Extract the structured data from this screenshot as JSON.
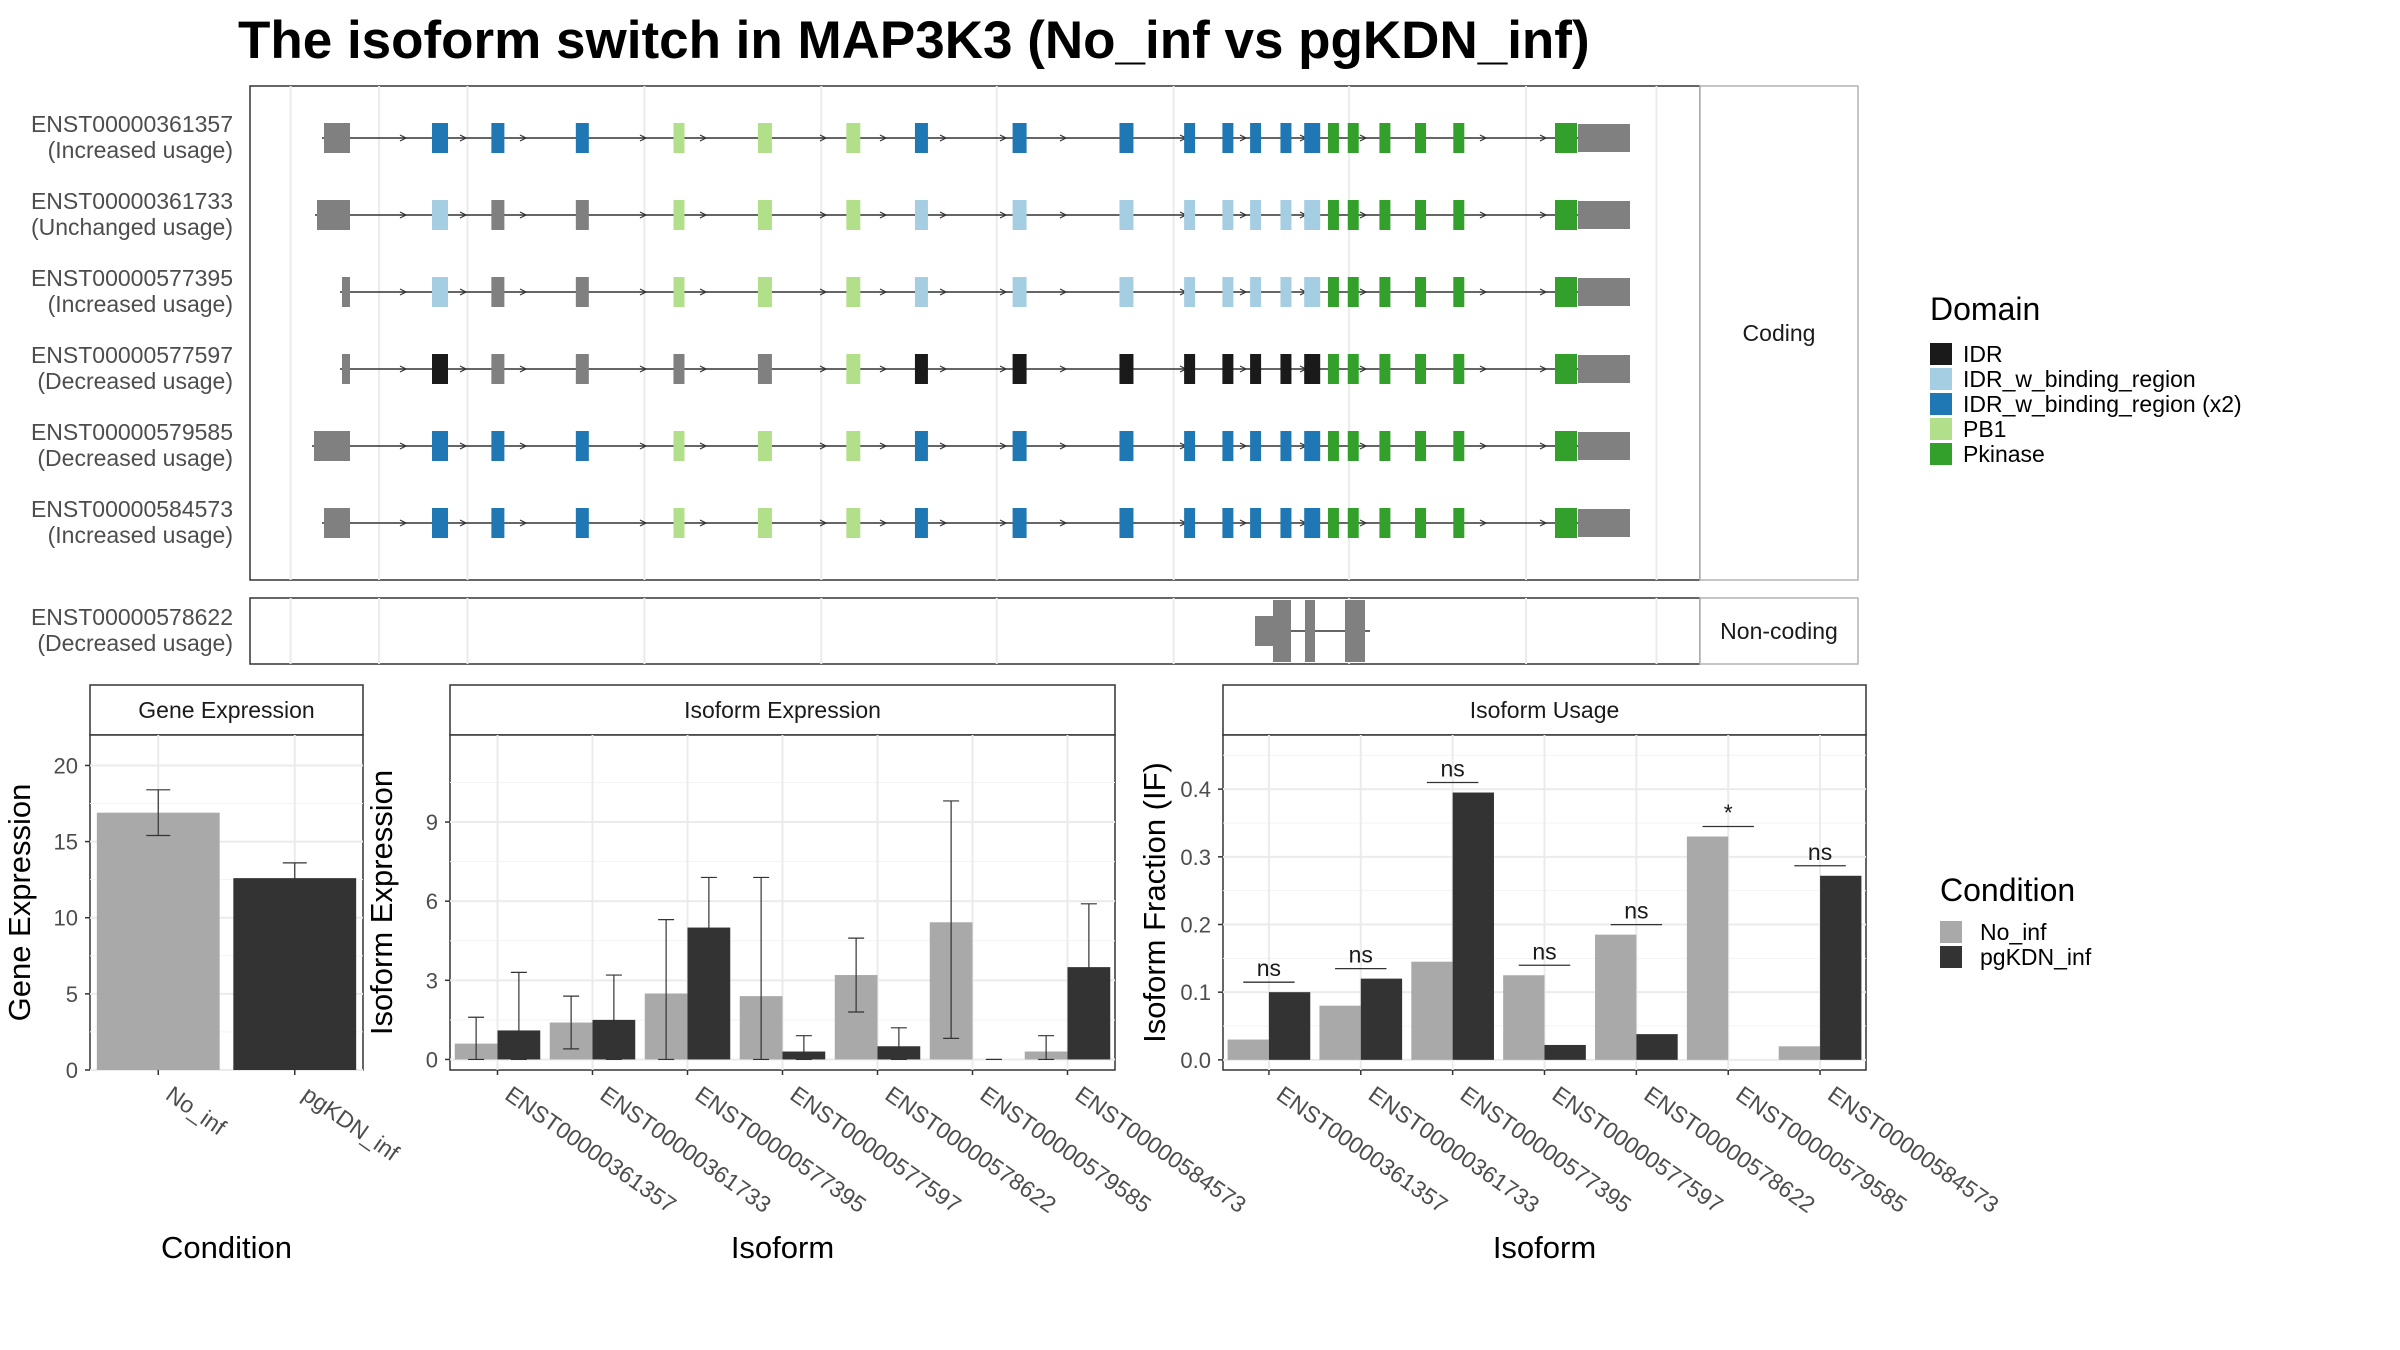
{
  "title": "The isoform switch in MAP3K3 (No_inf vs pgKDN_inf)",
  "colors": {
    "IDR": "#1a1a1a",
    "IDR_w_binding_region": "#a6cee3",
    "IDR_w_binding_region (x2)": "#1f78b4",
    "PB1": "#b2df8a",
    "Pkinase": "#33a02c",
    "none": "#808080",
    "No_inf": "#a9a9a9",
    "pgKDN_inf": "#333333"
  },
  "chart_data": [
    {
      "type": "gene-structure",
      "panels": [
        {
          "label": "Coding",
          "isoforms": [
            {
              "id": "ENST00000361357",
              "usage": "(Increased usage)"
            },
            {
              "id": "ENST00000361733",
              "usage": "(Unchanged usage)"
            },
            {
              "id": "ENST00000577395",
              "usage": "(Increased usage)"
            },
            {
              "id": "ENST00000577597",
              "usage": "(Decreased usage)"
            },
            {
              "id": "ENST00000579585",
              "usage": "(Decreased usage)"
            },
            {
              "id": "ENST00000584573",
              "usage": "(Increased usage)"
            }
          ]
        },
        {
          "label": "Non-coding",
          "isoforms": [
            {
              "id": "ENST00000578622",
              "usage": "(Decreased usage)"
            }
          ]
        }
      ],
      "legend": {
        "title": "Domain",
        "entries": [
          "IDR",
          "IDR_w_binding_region",
          "IDR_w_binding_region (x2)",
          "PB1",
          "Pkinase"
        ]
      }
    },
    {
      "type": "bar",
      "title": "Gene Expression",
      "xlabel": "Condition",
      "ylabel": "Gene Expression",
      "categories": [
        "No_inf",
        "pgKDN_inf"
      ],
      "values": [
        16.9,
        12.6
      ],
      "errors": [
        [
          15.4,
          18.4
        ],
        [
          11.6,
          13.6
        ]
      ],
      "ylim": [
        0,
        22
      ],
      "yticks": [
        0,
        5,
        10,
        15,
        20
      ]
    },
    {
      "type": "bar",
      "title": "Isoform Expression",
      "xlabel": "Isoform",
      "ylabel": "Isoform Expression",
      "categories": [
        "ENST00000361357",
        "ENST00000361733",
        "ENST00000577395",
        "ENST00000577597",
        "ENST00000578622",
        "ENST00000579585",
        "ENST00000584573"
      ],
      "series": [
        {
          "name": "No_inf",
          "values": [
            0.6,
            1.4,
            2.5,
            2.4,
            3.2,
            5.2,
            0.3
          ],
          "errors": [
            [
              0,
              1.6
            ],
            [
              0.4,
              2.4
            ],
            [
              0,
              5.3
            ],
            [
              0,
              6.9
            ],
            [
              1.8,
              4.6
            ],
            [
              0.8,
              9.8
            ],
            [
              0,
              0.9
            ]
          ]
        },
        {
          "name": "pgKDN_inf",
          "values": [
            1.1,
            1.5,
            5.0,
            0.3,
            0.5,
            0.0,
            3.5
          ],
          "errors": [
            [
              0,
              3.3
            ],
            [
              0,
              3.2
            ],
            [
              2.9,
              6.9
            ],
            [
              0,
              0.9
            ],
            [
              0,
              1.2
            ],
            [
              0,
              0
            ],
            [
              1.0,
              5.9
            ]
          ]
        }
      ],
      "ylim": [
        -0.4,
        12.3
      ],
      "yticks": [
        0,
        3,
        6,
        9
      ]
    },
    {
      "type": "bar",
      "title": "Isoform Usage",
      "xlabel": "Isoform",
      "ylabel": "Isoform Fraction (IF)",
      "categories": [
        "ENST00000361357",
        "ENST00000361733",
        "ENST00000577395",
        "ENST00000577597",
        "ENST00000578622",
        "ENST00000579585",
        "ENST00000584573"
      ],
      "series": [
        {
          "name": "No_inf",
          "values": [
            0.03,
            0.08,
            0.145,
            0.125,
            0.185,
            0.33,
            0.02
          ]
        },
        {
          "name": "pgKDN_inf",
          "values": [
            0.1,
            0.12,
            0.395,
            0.022,
            0.038,
            0.0,
            0.272
          ]
        }
      ],
      "significance": [
        "ns",
        "ns",
        "ns",
        "ns",
        "ns",
        "*",
        "ns"
      ],
      "ylim": [
        -0.015,
        0.48
      ],
      "yticks": [
        0.0,
        0.1,
        0.2,
        0.3,
        0.4
      ]
    }
  ],
  "condition_legend": {
    "title": "Condition",
    "entries": [
      "No_inf",
      "pgKDN_inf"
    ]
  }
}
